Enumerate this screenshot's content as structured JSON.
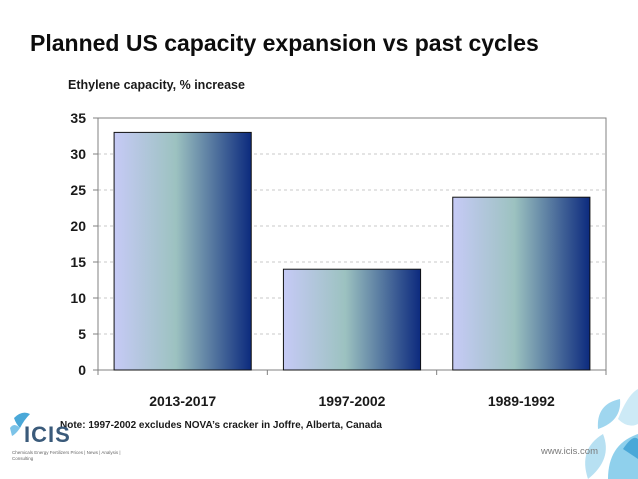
{
  "header": {
    "title": "Planned US capacity expansion vs past cycles"
  },
  "footer": {
    "note": "Note: 1997-2002 excludes NOVA’s cracker in Joffre, Alberta, Canada",
    "logo_text": "ICIS",
    "logo_tagline": "Chemicals  Energy  Fertilizers  Prices | News | Analysis | Consulting",
    "website": "www.icis.com"
  },
  "colors": {
    "bar_light": "#c6caf6",
    "bar_mid": "#9cc2c0",
    "bar_dark": "#0c2a7e",
    "grid": "#c8c8c8",
    "logo_accent": "#4aa8d8"
  },
  "icons": {
    "logo": "icis-logo",
    "decoration": "corner-petals-decoration"
  },
  "chart_data": {
    "type": "bar",
    "title": "Planned US capacity expansion vs past cycles",
    "ylabel": "Ethylene capacity, % increase",
    "xlabel": "",
    "categories": [
      "2013-2017",
      "1997-2002",
      "1989-1992"
    ],
    "values": [
      33,
      14,
      24
    ],
    "ylim": [
      0,
      35
    ],
    "yticks": [
      0,
      5,
      10,
      15,
      20,
      25,
      30,
      35
    ],
    "grid": true,
    "legend": "none"
  }
}
